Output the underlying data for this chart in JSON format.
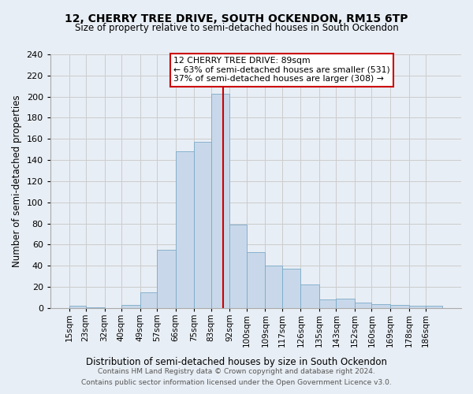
{
  "title": "12, CHERRY TREE DRIVE, SOUTH OCKENDON, RM15 6TP",
  "subtitle": "Size of property relative to semi-detached houses in South Ockendon",
  "xlabel": "Distribution of semi-detached houses by size in South Ockendon",
  "ylabel": "Number of semi-detached properties",
  "footnote1": "Contains HM Land Registry data © Crown copyright and database right 2024.",
  "footnote2": "Contains public sector information licensed under the Open Government Licence v3.0.",
  "annotation_title": "12 CHERRY TREE DRIVE: 89sqm",
  "annotation_line1": "← 63% of semi-detached houses are smaller (531)",
  "annotation_line2": "37% of semi-detached houses are larger (308) →",
  "property_line_x": 89,
  "bar_color": "#c8d8ea",
  "bar_edge_color": "#7aaac8",
  "line_color": "#cc0000",
  "annotation_box_color": "#ffffff",
  "annotation_box_edge": "#cc0000",
  "grid_color": "#cccccc",
  "background_color": "#e8eef5",
  "bins": [
    15,
    23,
    32,
    40,
    49,
    57,
    66,
    75,
    83,
    92,
    100,
    109,
    117,
    126,
    135,
    143,
    152,
    160,
    169,
    178,
    186,
    194
  ],
  "bar_labels": [
    "15sqm",
    "23sqm",
    "32sqm",
    "40sqm",
    "49sqm",
    "57sqm",
    "66sqm",
    "75sqm",
    "83sqm",
    "92sqm",
    "100sqm",
    "109sqm",
    "117sqm",
    "126sqm",
    "135sqm",
    "143sqm",
    "152sqm",
    "160sqm",
    "169sqm",
    "178sqm",
    "186sqm"
  ],
  "bar_heights": [
    2,
    1,
    0,
    3,
    15,
    55,
    148,
    157,
    203,
    79,
    53,
    40,
    37,
    22,
    8,
    9,
    5,
    4,
    3,
    2,
    2
  ],
  "ylim": [
    0,
    240
  ],
  "yticks": [
    0,
    20,
    40,
    60,
    80,
    100,
    120,
    140,
    160,
    180,
    200,
    220,
    240
  ]
}
